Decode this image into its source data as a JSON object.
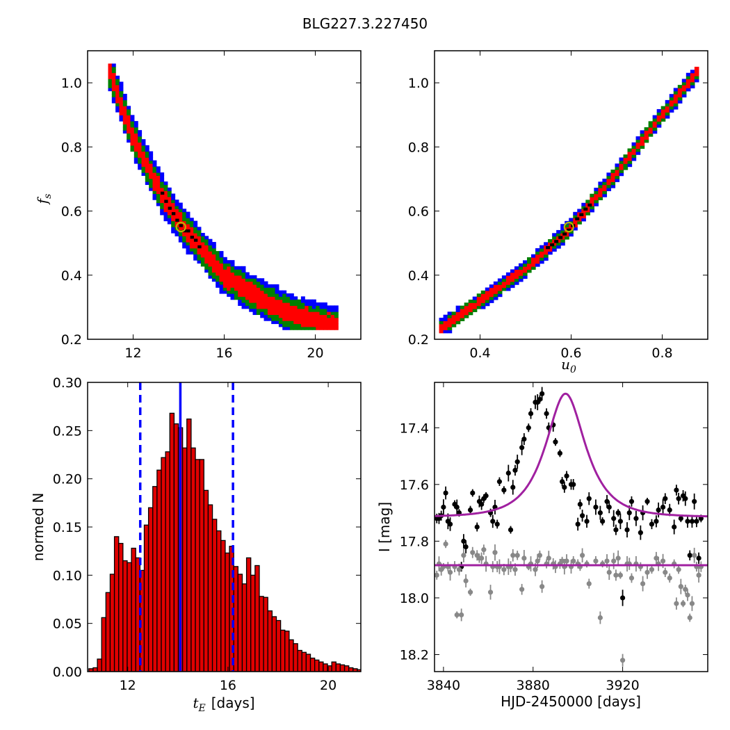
{
  "figure": {
    "title": "BLG227.3.227450",
    "colors": {
      "sigma1": "#ff0000",
      "sigma2": "#008000",
      "sigma3": "#0000ff",
      "best": "#000000",
      "marker": "#b8b800",
      "bars": "#e00000",
      "vlines": "#0000ff",
      "model": "#a020a0",
      "data_i": "#000000",
      "data_v": "#888888"
    }
  },
  "chart_data": [
    {
      "type": "heatmap",
      "panel": "top-left",
      "xlabel": "",
      "ylabel_symbol": "f",
      "ylabel_sub": "s",
      "xlim": [
        10.0,
        22.0
      ],
      "ylim": [
        0.2,
        1.1
      ],
      "xticks": [
        "12",
        "16",
        "20"
      ],
      "yticks": [
        "0.2",
        "0.4",
        "0.6",
        "0.8",
        "1.0"
      ],
      "xtick_values": [
        12,
        16,
        20
      ],
      "ytick_values": [
        0.2,
        0.4,
        0.6,
        0.8,
        1.0
      ],
      "band": {
        "centerline": [
          [
            10.9,
            1.05
          ],
          [
            12.0,
            0.83
          ],
          [
            13.2,
            0.66
          ],
          [
            14.2,
            0.55
          ],
          [
            16.0,
            0.4
          ],
          [
            17.5,
            0.33
          ],
          [
            19.0,
            0.28
          ],
          [
            21.0,
            0.24
          ]
        ],
        "half_width": {
          "sigma1": 0.028,
          "sigma2": 0.045,
          "sigma3": 0.06
        }
      },
      "best_fit_marker": {
        "x": 14.1,
        "y": 0.55
      }
    },
    {
      "type": "heatmap",
      "panel": "top-right",
      "xlabel_symbol": "u",
      "xlabel_sub": "0",
      "ylabel": "",
      "xlim": [
        0.3,
        0.9
      ],
      "ylim": [
        0.2,
        1.1
      ],
      "xticks": [
        "0.4",
        "0.6",
        "0.8"
      ],
      "yticks": [
        "0.2",
        "0.4",
        "0.6",
        "0.8",
        "1.0"
      ],
      "xtick_values": [
        0.4,
        0.6,
        0.8
      ],
      "ytick_values": [
        0.2,
        0.4,
        0.6,
        0.8,
        1.0
      ],
      "band": {
        "centerline": [
          [
            0.31,
            0.23
          ],
          [
            0.4,
            0.32
          ],
          [
            0.5,
            0.42
          ],
          [
            0.6,
            0.55
          ],
          [
            0.7,
            0.72
          ],
          [
            0.8,
            0.9
          ],
          [
            0.88,
            1.04
          ]
        ],
        "half_width": {
          "sigma1": 0.012,
          "sigma2": 0.02,
          "sigma3": 0.027
        }
      },
      "best_fit_marker": {
        "x": 0.595,
        "y": 0.55
      }
    },
    {
      "type": "bar",
      "panel": "bottom-left",
      "xlabel_symbol": "t",
      "xlabel_sub": "E",
      "xlabel_unit": "[days]",
      "ylabel": "normed N",
      "xlim": [
        10.4,
        21.3
      ],
      "ylim": [
        0.0,
        0.3
      ],
      "xticks": [
        "12",
        "16",
        "20"
      ],
      "yticks": [
        "0.00",
        "0.05",
        "0.10",
        "0.15",
        "0.20",
        "0.25",
        "0.30"
      ],
      "xtick_values": [
        12,
        16,
        20
      ],
      "ytick_values": [
        0.0,
        0.05,
        0.1,
        0.15,
        0.2,
        0.25,
        0.3
      ],
      "bin_start": 10.45,
      "bin_width": 0.17,
      "values": [
        0.003,
        0.004,
        0.013,
        0.056,
        0.082,
        0.101,
        0.14,
        0.133,
        0.115,
        0.113,
        0.128,
        0.118,
        0.105,
        0.152,
        0.17,
        0.192,
        0.209,
        0.222,
        0.228,
        0.268,
        0.257,
        0.253,
        0.232,
        0.262,
        0.232,
        0.22,
        0.22,
        0.188,
        0.173,
        0.158,
        0.146,
        0.136,
        0.123,
        0.13,
        0.109,
        0.101,
        0.091,
        0.118,
        0.1,
        0.11,
        0.078,
        0.077,
        0.063,
        0.057,
        0.053,
        0.043,
        0.042,
        0.033,
        0.029,
        0.022,
        0.02,
        0.018,
        0.014,
        0.012,
        0.01,
        0.008,
        0.006,
        0.01,
        0.008,
        0.007,
        0.006,
        0.004,
        0.003,
        0.002
      ],
      "vlines": {
        "median": 14.1,
        "lower": 12.5,
        "upper": 16.2
      }
    },
    {
      "type": "scatter",
      "panel": "bottom-right",
      "xlabel": "HJD-2450000 [days]",
      "ylabel": "I [mag]",
      "xlim": [
        3836,
        3958
      ],
      "ylim": [
        18.26,
        17.24
      ],
      "y_inverted": true,
      "xticks": [
        "3840",
        "3880",
        "3920"
      ],
      "yticks": [
        "17.4",
        "17.6",
        "17.8",
        "18.0",
        "18.2"
      ],
      "xtick_values": [
        3840,
        3880,
        3920
      ],
      "ytick_values": [
        17.4,
        17.6,
        17.8,
        18.0,
        18.2
      ],
      "model": {
        "t0": 3894.5,
        "u0": 0.595,
        "tE": 14.1,
        "base": 17.715,
        "mag_offset": 0.0
      },
      "flat_model": 17.885,
      "series": [
        {
          "color_key": "data_i",
          "points": [
            [
              3837,
              17.72
            ],
            [
              3838,
              17.72
            ],
            [
              3839,
              17.71
            ],
            [
              3840,
              17.68
            ],
            [
              3841,
              17.63
            ],
            [
              3842,
              17.73
            ],
            [
              3843,
              17.74
            ],
            [
              3845,
              17.67
            ],
            [
              3846,
              17.68
            ],
            [
              3847,
              17.7
            ],
            [
              3848,
              17.89
            ],
            [
              3849,
              17.8
            ],
            [
              3850,
              17.82
            ],
            [
              3852,
              17.69
            ],
            [
              3853,
              17.63
            ],
            [
              3855,
              17.75
            ],
            [
              3856,
              17.66
            ],
            [
              3857,
              17.67
            ],
            [
              3858,
              17.65
            ],
            [
              3859,
              17.64
            ],
            [
              3861,
              17.7
            ],
            [
              3862,
              17.73
            ],
            [
              3863,
              17.68
            ],
            [
              3864,
              17.74
            ],
            [
              3865,
              17.59
            ],
            [
              3867,
              17.62
            ],
            [
              3869,
              17.56
            ],
            [
              3870,
              17.76
            ],
            [
              3871,
              17.61
            ],
            [
              3872,
              17.55
            ],
            [
              3873,
              17.52
            ],
            [
              3875,
              17.47
            ],
            [
              3876,
              17.44
            ],
            [
              3878,
              17.4
            ],
            [
              3879,
              17.35
            ],
            [
              3881,
              17.31
            ],
            [
              3882,
              17.31
            ],
            [
              3883,
              17.3
            ],
            [
              3884,
              17.28
            ],
            [
              3886,
              17.35
            ],
            [
              3887,
              17.4
            ],
            [
              3889,
              17.39
            ],
            [
              3890,
              17.45
            ],
            [
              3892,
              17.49
            ],
            [
              3893,
              17.59
            ],
            [
              3894,
              17.61
            ],
            [
              3895,
              17.57
            ],
            [
              3897,
              17.6
            ],
            [
              3898,
              17.6
            ],
            [
              3900,
              17.74
            ],
            [
              3901,
              17.67
            ],
            [
              3902,
              17.71
            ],
            [
              3904,
              17.73
            ],
            [
              3905,
              17.65
            ],
            [
              3908,
              17.68
            ],
            [
              3910,
              17.7
            ],
            [
              3911,
              17.73
            ],
            [
              3913,
              17.66
            ],
            [
              3914,
              17.68
            ],
            [
              3916,
              17.72
            ],
            [
              3917,
              17.76
            ],
            [
              3918,
              17.7
            ],
            [
              3919,
              17.73
            ],
            [
              3920,
              18.0
            ],
            [
              3922,
              17.76
            ],
            [
              3923,
              17.7
            ],
            [
              3924,
              17.66
            ],
            [
              3926,
              17.72
            ],
            [
              3928,
              17.77
            ],
            [
              3929,
              17.7
            ],
            [
              3931,
              17.66
            ],
            [
              3933,
              17.74
            ],
            [
              3935,
              17.73
            ],
            [
              3936,
              17.69
            ],
            [
              3938,
              17.68
            ],
            [
              3939,
              17.65
            ],
            [
              3941,
              17.69
            ],
            [
              3943,
              17.75
            ],
            [
              3944,
              17.62
            ],
            [
              3945,
              17.65
            ],
            [
              3946,
              17.72
            ],
            [
              3947,
              17.64
            ],
            [
              3948,
              17.65
            ],
            [
              3949,
              17.73
            ],
            [
              3950,
              17.85
            ],
            [
              3951,
              17.73
            ],
            [
              3952,
              17.66
            ],
            [
              3953,
              17.73
            ],
            [
              3954,
              17.86
            ],
            [
              3955,
              17.72
            ]
          ]
        },
        {
          "color_key": "data_v",
          "points": [
            [
              3837,
              17.92
            ],
            [
              3838,
              17.88
            ],
            [
              3839,
              17.9
            ],
            [
              3840,
              17.89
            ],
            [
              3841,
              17.81
            ],
            [
              3842,
              17.89
            ],
            [
              3843,
              17.91
            ],
            [
              3845,
              17.89
            ],
            [
              3846,
              18.06
            ],
            [
              3847,
              17.9
            ],
            [
              3848,
              18.06
            ],
            [
              3849,
              17.85
            ],
            [
              3850,
              17.94
            ],
            [
              3852,
              17.98
            ],
            [
              3853,
              17.84
            ],
            [
              3855,
              17.85
            ],
            [
              3856,
              17.86
            ],
            [
              3857,
              17.86
            ],
            [
              3858,
              17.83
            ],
            [
              3859,
              17.88
            ],
            [
              3861,
              17.98
            ],
            [
              3862,
              17.89
            ],
            [
              3863,
              17.84
            ],
            [
              3864,
              17.89
            ],
            [
              3865,
              17.89
            ],
            [
              3867,
              17.9
            ],
            [
              3869,
              17.89
            ],
            [
              3870,
              17.89
            ],
            [
              3871,
              17.85
            ],
            [
              3872,
              17.9
            ],
            [
              3873,
              17.85
            ],
            [
              3875,
              17.97
            ],
            [
              3876,
              17.86
            ],
            [
              3878,
              17.89
            ],
            [
              3879,
              17.88
            ],
            [
              3881,
              17.9
            ],
            [
              3882,
              17.87
            ],
            [
              3883,
              17.85
            ],
            [
              3884,
              17.96
            ],
            [
              3886,
              17.88
            ],
            [
              3887,
              17.86
            ],
            [
              3889,
              17.88
            ],
            [
              3890,
              17.89
            ],
            [
              3892,
              17.88
            ],
            [
              3893,
              17.87
            ],
            [
              3894,
              17.89
            ],
            [
              3895,
              17.87
            ],
            [
              3897,
              17.89
            ],
            [
              3898,
              17.87
            ],
            [
              3900,
              17.88
            ],
            [
              3901,
              17.89
            ],
            [
              3902,
              17.85
            ],
            [
              3904,
              17.88
            ],
            [
              3905,
              17.95
            ],
            [
              3908,
              17.87
            ],
            [
              3910,
              18.07
            ],
            [
              3911,
              17.88
            ],
            [
              3913,
              17.87
            ],
            [
              3914,
              17.91
            ],
            [
              3916,
              17.87
            ],
            [
              3917,
              17.92
            ],
            [
              3918,
              17.86
            ],
            [
              3919,
              17.92
            ],
            [
              3920,
              18.22
            ],
            [
              3922,
              17.88
            ],
            [
              3923,
              17.88
            ],
            [
              3924,
              17.93
            ],
            [
              3926,
              17.88
            ],
            [
              3928,
              17.89
            ],
            [
              3929,
              17.95
            ],
            [
              3931,
              17.91
            ],
            [
              3933,
              17.9
            ],
            [
              3935,
              17.86
            ],
            [
              3936,
              17.88
            ],
            [
              3938,
              17.87
            ],
            [
              3939,
              17.91
            ],
            [
              3941,
              17.93
            ],
            [
              3943,
              17.88
            ],
            [
              3944,
              18.02
            ],
            [
              3945,
              17.9
            ],
            [
              3946,
              17.96
            ],
            [
              3947,
              18.02
            ],
            [
              3948,
              17.97
            ],
            [
              3949,
              17.99
            ],
            [
              3950,
              18.07
            ],
            [
              3951,
              18.02
            ],
            [
              3952,
              17.85
            ],
            [
              3953,
              17.89
            ],
            [
              3954,
              17.92
            ],
            [
              3955,
              17.89
            ]
          ]
        }
      ]
    }
  ]
}
